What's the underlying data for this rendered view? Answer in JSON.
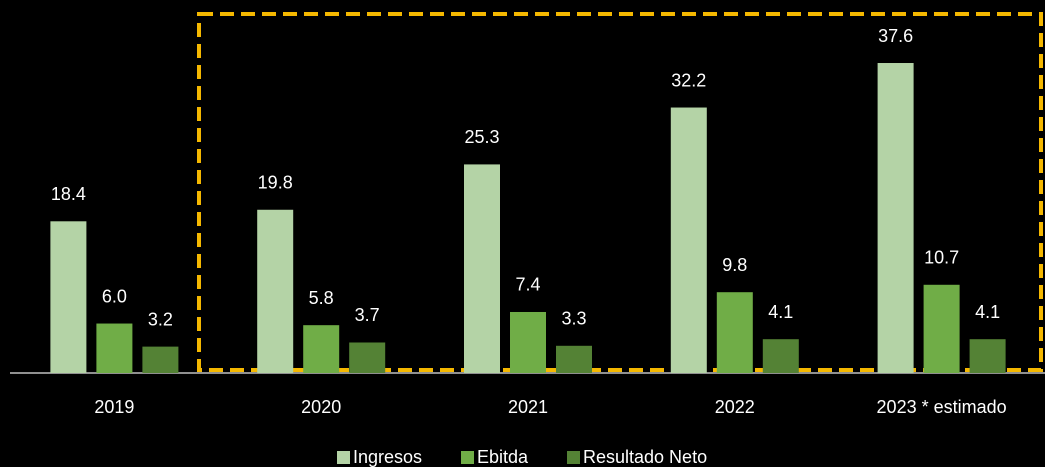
{
  "chart_data": {
    "type": "bar",
    "categories": [
      "2019",
      "2020",
      "2021",
      "2022",
      "2023 * estimado"
    ],
    "series": [
      {
        "name": "Ingresos",
        "color": "#b4d3a6",
        "values": [
          18.4,
          19.8,
          25.3,
          32.2,
          37.6
        ],
        "value_labels": [
          "18.4",
          "19.8",
          "25.3",
          "32.2",
          "37.6"
        ]
      },
      {
        "name": "Ebitda",
        "color": "#70ad47",
        "values": [
          6.0,
          5.8,
          7.4,
          9.8,
          10.7
        ],
        "value_labels": [
          "6.0",
          "5.8",
          "7.4",
          "9.8",
          "10.7"
        ]
      },
      {
        "name": "Resultado Neto",
        "color": "#548235",
        "values": [
          3.2,
          3.7,
          3.3,
          4.1,
          4.1
        ],
        "value_labels": [
          "3.2",
          "3.7",
          "3.3",
          "4.1",
          "4.1"
        ]
      }
    ],
    "ylim": [
      0,
      45
    ],
    "grid": false,
    "legend": "bottom"
  }
}
